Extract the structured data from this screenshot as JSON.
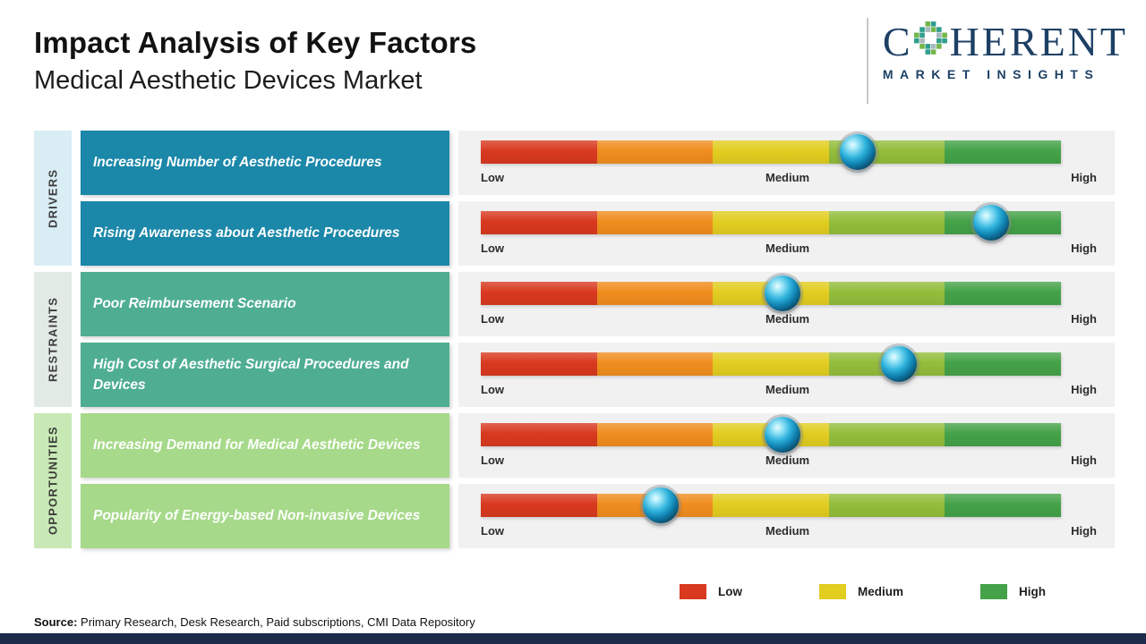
{
  "header": {
    "title": "Impact Analysis of Key Factors",
    "subtitle": "Medical Aesthetic Devices Market"
  },
  "logo": {
    "name_prefix": "C",
    "name_suffix": "HERENT",
    "tagline": "MARKET INSIGHTS"
  },
  "groups": [
    {
      "label": "DRIVERS",
      "bg": "#d9edf4",
      "box_bg": "#1b87a9"
    },
    {
      "label": "RESTRAINTS",
      "bg": "#e2eae5",
      "box_bg": "#4fae91"
    },
    {
      "label": "OPPORTUNITIES",
      "bg": "#c8e9b5",
      "box_bg": "#a6d989"
    }
  ],
  "scale": {
    "labels": [
      "Low",
      "Medium",
      "High"
    ],
    "segment_colors": [
      "#d8391f",
      "#f08d1e",
      "#e2cd20",
      "#93bd3b",
      "#44a248"
    ]
  },
  "legend": [
    {
      "label": "Low",
      "color": "#d8391f"
    },
    {
      "label": "Medium",
      "color": "#e2cd20"
    },
    {
      "label": "High",
      "color": "#44a248"
    }
  ],
  "source": {
    "label": "Source:",
    "text": " Primary Research, Desk Research, Paid subscriptions, CMI Data Repository"
  },
  "chart_data": {
    "type": "scatter",
    "title": "Impact Analysis of Key Factors",
    "subtitle": "Medical Aesthetic Devices Market",
    "x_axis": {
      "labels": [
        "Low",
        "Medium",
        "High"
      ],
      "range_pct": [
        0,
        100
      ]
    },
    "legend_position": "bottom-right",
    "series": [
      {
        "category": "Drivers",
        "factor": "Increasing Number of Aesthetic Procedures",
        "impact_pct": 65
      },
      {
        "category": "Drivers",
        "factor": "Rising Awareness about Aesthetic Procedures",
        "impact_pct": 88
      },
      {
        "category": "Restraints",
        "factor": "Poor Reimbursement Scenario",
        "impact_pct": 52
      },
      {
        "category": "Restraints",
        "factor": "High Cost of Aesthetic Surgical Procedures and Devices",
        "impact_pct": 72
      },
      {
        "category": "Opportunities",
        "factor": "Increasing Demand for Medical Aesthetic Devices",
        "impact_pct": 52
      },
      {
        "category": "Opportunities",
        "factor": "Popularity of Energy-based Non-invasive Devices",
        "impact_pct": 31
      }
    ]
  }
}
